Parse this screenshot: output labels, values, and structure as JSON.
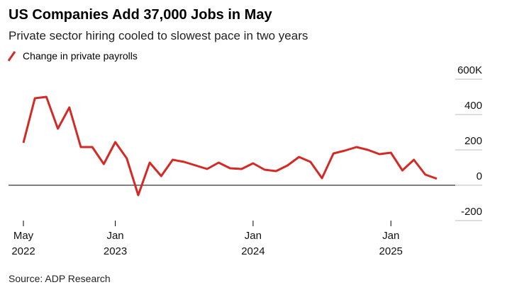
{
  "chart_data": {
    "type": "line",
    "title": "US Companies Add 37,000 Jobs in May",
    "subtitle": "Private sector hiring cooled to slowest pace in two years",
    "source": "Source: ADP Research",
    "categories": [
      "May 2022",
      null,
      null,
      null,
      null,
      null,
      null,
      null,
      "Jan 2023",
      null,
      null,
      null,
      null,
      null,
      null,
      null,
      null,
      null,
      null,
      null,
      "Jan 2024",
      null,
      null,
      null,
      null,
      null,
      null,
      null,
      null,
      null,
      null,
      null,
      "Jan 2025",
      null,
      null,
      null,
      null
    ],
    "series": [
      {
        "name": "Change in private payrolls",
        "color": "#d42a26",
        "values": [
          240,
          492,
          500,
          320,
          440,
          216,
          216,
          120,
          244,
          152,
          -56,
          128,
          52,
          144,
          132,
          112,
          92,
          128,
          96,
          92,
          124,
          88,
          80,
          112,
          160,
          132,
          40,
          180,
          196,
          216,
          200,
          176,
          184,
          84,
          144,
          60,
          37
        ]
      }
    ],
    "ylim": [
      -240,
      680
    ],
    "yticks": [
      {
        "value": 600,
        "label": "600K"
      },
      400,
      200,
      0,
      -200
    ],
    "grid": true
  }
}
